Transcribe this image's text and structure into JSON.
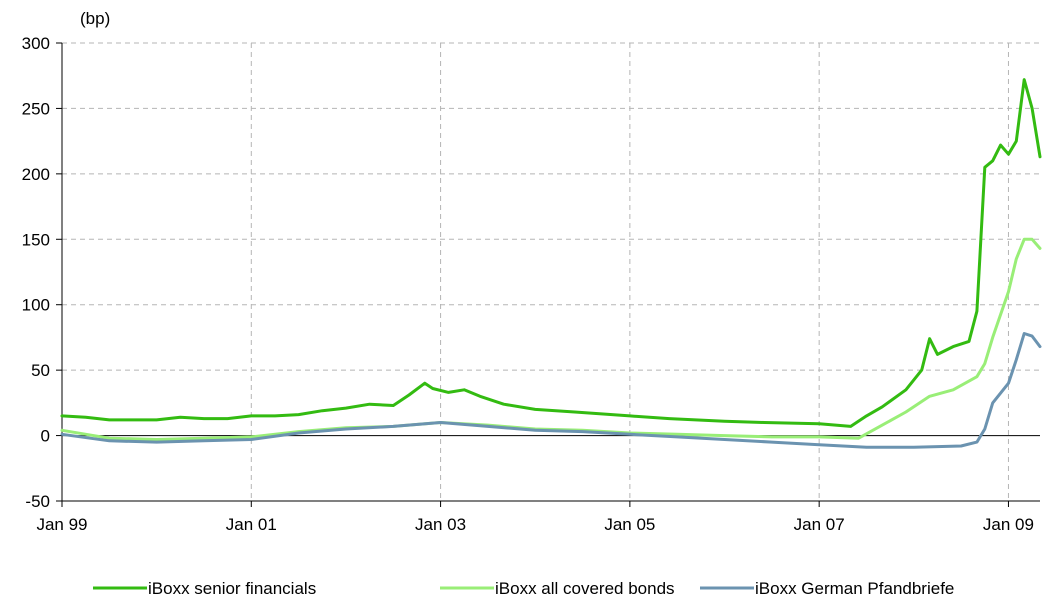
{
  "chart_data": {
    "type": "line",
    "title": "",
    "unit_label": "(bp)",
    "xlabel": "",
    "ylabel": "",
    "x_ticks": [
      "Jan 99",
      "Jan 01",
      "Jan 03",
      "Jan 05",
      "Jan 07",
      "Jan 09"
    ],
    "x_range": [
      "1999-01",
      "2009-05"
    ],
    "y_ticks": [
      300,
      250,
      200,
      150,
      100,
      50,
      0,
      -50
    ],
    "ylim": [
      -50,
      300
    ],
    "grid": true,
    "legend_position": "bottom",
    "series": [
      {
        "name": "iBoxx senior financials",
        "color": "#33bb11",
        "points": [
          [
            "1999-01",
            15
          ],
          [
            "1999-04",
            14
          ],
          [
            "1999-07",
            12
          ],
          [
            "1999-10",
            12
          ],
          [
            "2000-01",
            12
          ],
          [
            "2000-04",
            14
          ],
          [
            "2000-07",
            13
          ],
          [
            "2000-10",
            13
          ],
          [
            "2001-01",
            15
          ],
          [
            "2001-04",
            15
          ],
          [
            "2001-07",
            16
          ],
          [
            "2001-10",
            19
          ],
          [
            "2002-01",
            21
          ],
          [
            "2002-04",
            24
          ],
          [
            "2002-07",
            23
          ],
          [
            "2002-09",
            31
          ],
          [
            "2002-11",
            40
          ],
          [
            "2002-12",
            36
          ],
          [
            "2003-02",
            33
          ],
          [
            "2003-04",
            35
          ],
          [
            "2003-06",
            30
          ],
          [
            "2003-09",
            24
          ],
          [
            "2004-01",
            20
          ],
          [
            "2004-06",
            18
          ],
          [
            "2005-01",
            15
          ],
          [
            "2005-06",
            13
          ],
          [
            "2006-01",
            11
          ],
          [
            "2006-06",
            10
          ],
          [
            "2007-01",
            9
          ],
          [
            "2007-05",
            7
          ],
          [
            "2007-07",
            15
          ],
          [
            "2007-09",
            22
          ],
          [
            "2007-12",
            35
          ],
          [
            "2008-02",
            50
          ],
          [
            "2008-03",
            74
          ],
          [
            "2008-04",
            62
          ],
          [
            "2008-06",
            68
          ],
          [
            "2008-08",
            72
          ],
          [
            "2008-09",
            95
          ],
          [
            "2008-10",
            205
          ],
          [
            "2008-11",
            210
          ],
          [
            "2008-12",
            222
          ],
          [
            "2009-01",
            215
          ],
          [
            "2009-02",
            225
          ],
          [
            "2009-03",
            272
          ],
          [
            "2009-04",
            250
          ],
          [
            "2009-05",
            213
          ]
        ]
      },
      {
        "name": "iBoxx all covered bonds",
        "color": "#99ee77",
        "points": [
          [
            "1999-01",
            4
          ],
          [
            "1999-07",
            -2
          ],
          [
            "2000-01",
            -3
          ],
          [
            "2000-07",
            -2
          ],
          [
            "2001-01",
            -1
          ],
          [
            "2001-07",
            3
          ],
          [
            "2002-01",
            6
          ],
          [
            "2002-07",
            7
          ],
          [
            "2003-01",
            10
          ],
          [
            "2003-07",
            8
          ],
          [
            "2004-01",
            5
          ],
          [
            "2004-07",
            4
          ],
          [
            "2005-01",
            2
          ],
          [
            "2005-07",
            1
          ],
          [
            "2006-01",
            0
          ],
          [
            "2006-07",
            -1
          ],
          [
            "2007-01",
            -1
          ],
          [
            "2007-06",
            -2
          ],
          [
            "2007-09",
            8
          ],
          [
            "2007-12",
            18
          ],
          [
            "2008-03",
            30
          ],
          [
            "2008-06",
            35
          ],
          [
            "2008-09",
            45
          ],
          [
            "2008-10",
            55
          ],
          [
            "2008-11",
            75
          ],
          [
            "2009-01",
            110
          ],
          [
            "2009-02",
            135
          ],
          [
            "2009-03",
            150
          ],
          [
            "2009-04",
            150
          ],
          [
            "2009-05",
            143
          ]
        ]
      },
      {
        "name": "iBoxx German Pfandbriefe",
        "color": "#6b93b0",
        "points": [
          [
            "1999-01",
            1
          ],
          [
            "1999-07",
            -4
          ],
          [
            "2000-01",
            -5
          ],
          [
            "2000-07",
            -4
          ],
          [
            "2001-01",
            -3
          ],
          [
            "2001-07",
            2
          ],
          [
            "2002-01",
            5
          ],
          [
            "2002-07",
            7
          ],
          [
            "2003-01",
            10
          ],
          [
            "2003-07",
            7
          ],
          [
            "2004-01",
            4
          ],
          [
            "2004-07",
            3
          ],
          [
            "2005-01",
            1
          ],
          [
            "2005-07",
            -1
          ],
          [
            "2006-01",
            -3
          ],
          [
            "2006-07",
            -5
          ],
          [
            "2007-01",
            -7
          ],
          [
            "2007-07",
            -9
          ],
          [
            "2008-01",
            -9
          ],
          [
            "2008-07",
            -8
          ],
          [
            "2008-09",
            -5
          ],
          [
            "2008-10",
            5
          ],
          [
            "2008-11",
            25
          ],
          [
            "2009-01",
            40
          ],
          [
            "2009-02",
            58
          ],
          [
            "2009-03",
            78
          ],
          [
            "2009-04",
            76
          ],
          [
            "2009-05",
            68
          ]
        ]
      }
    ]
  }
}
